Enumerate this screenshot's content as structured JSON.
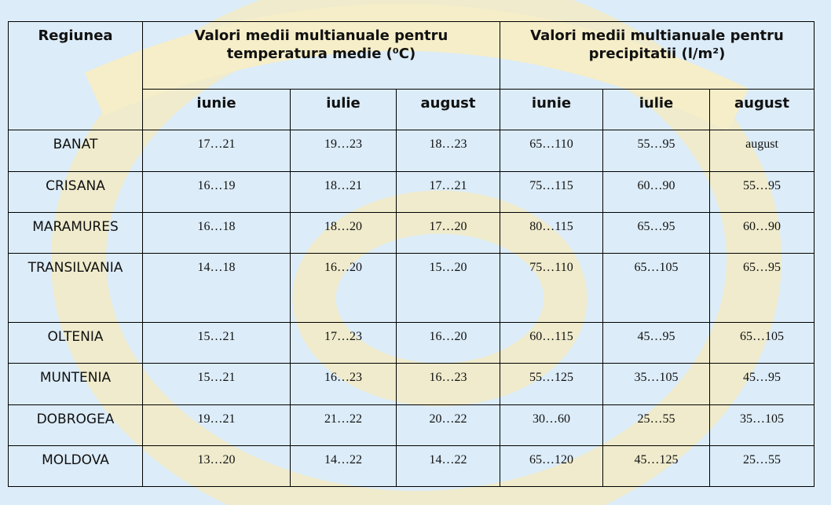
{
  "header": {
    "region": "Regiunea",
    "temperature": "Valori medii multianuale pentru temperatura medie (⁰C)",
    "precipitation": "Valori medii multianuale pentru precipitatii (l/m²)",
    "months": [
      "iunie",
      "iulie",
      "august",
      "iunie",
      "iulie",
      "august"
    ]
  },
  "rows": [
    {
      "region": "BANAT",
      "values": [
        "17…21",
        "19…23",
        "18…23",
        "65…110",
        "55…95",
        "august"
      ]
    },
    {
      "region": "CRISANA",
      "values": [
        "16…19",
        "18…21",
        "17…21",
        "75…115",
        "60…90",
        "55…95"
      ]
    },
    {
      "region": "MARAMURES",
      "values": [
        "16…18",
        "18…20",
        "17…20",
        "80…115",
        "65…95",
        "60…90"
      ]
    },
    {
      "region": "TRANSILVANIA",
      "values": [
        "14…18",
        "16…20",
        "15…20",
        "75…110",
        "65…105",
        "65…95"
      ]
    },
    {
      "region": "OLTENIA",
      "values": [
        "15…21",
        "17…23",
        "16…20",
        "60…115",
        "45…95",
        "65…105"
      ]
    },
    {
      "region": "MUNTENIA",
      "values": [
        "15…21",
        "16…23",
        "16…23",
        "55…125",
        "35…105",
        "45…95"
      ]
    },
    {
      "region": "DOBROGEA",
      "values": [
        "19…21",
        "21…22",
        "20…22",
        "30…60",
        "25…55",
        "35…105"
      ]
    },
    {
      "region": "MOLDOVA",
      "values": [
        "13…20",
        "14…22",
        "14…22",
        "65…120",
        "45…125",
        "25…55"
      ]
    }
  ]
}
